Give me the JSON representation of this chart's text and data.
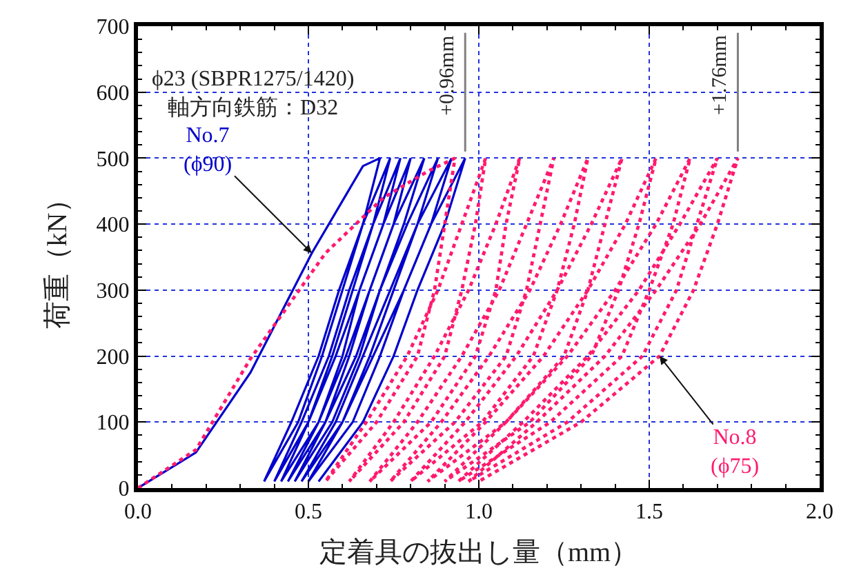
{
  "chart_data": {
    "type": "line",
    "xlabel": "定着具の抜出し量（mm）",
    "ylabel": "荷重（kN）",
    "xlim": [
      0,
      2
    ],
    "xticks": [
      {
        "value": 0,
        "label": "0.0"
      },
      {
        "value": 0.5,
        "label": "0.5"
      },
      {
        "value": 1,
        "label": "1.0"
      },
      {
        "value": 1.5,
        "label": "1.5"
      },
      {
        "value": 2,
        "label": "2.0"
      }
    ],
    "ylim": [
      0,
      700
    ],
    "yticks": [
      0,
      100,
      200,
      300,
      400,
      500,
      600,
      700
    ],
    "grid": true,
    "marker": "none",
    "series": [
      {
        "color": "#0000cc",
        "line_style": "solid",
        "x": [
          0,
          0.17,
          0.33,
          0.51,
          0.66,
          0.71,
          0.66,
          0.6,
          0.54,
          0.47,
          0.37,
          0.45,
          0.53,
          0.59,
          0.66,
          0.74,
          0.69,
          0.63,
          0.57,
          0.5,
          0.4,
          0.48,
          0.56,
          0.62,
          0.69,
          0.77,
          0.72,
          0.65,
          0.6,
          0.53,
          0.42,
          0.5,
          0.58,
          0.65,
          0.72,
          0.8,
          0.75,
          0.68,
          0.62,
          0.55,
          0.44,
          0.53,
          0.61,
          0.68,
          0.75,
          0.84,
          0.78,
          0.71,
          0.65,
          0.57,
          0.46,
          0.55,
          0.64,
          0.71,
          0.79,
          0.88,
          0.82,
          0.75,
          0.68,
          0.6,
          0.48,
          0.58,
          0.66,
          0.74,
          0.82,
          0.92,
          0.86,
          0.78,
          0.71,
          0.63,
          0.5,
          0.6,
          0.69,
          0.78,
          0.86,
          0.96,
          0.9,
          0.82,
          0.75,
          0.66,
          0.53
        ],
        "values": [
          0,
          54,
          175,
          356,
          488,
          500,
          400,
          300,
          200,
          100,
          10,
          100,
          200,
          300,
          400,
          500,
          400,
          300,
          200,
          100,
          10,
          100,
          200,
          300,
          400,
          500,
          400,
          300,
          200,
          100,
          10,
          100,
          200,
          300,
          400,
          500,
          400,
          300,
          200,
          100,
          10,
          100,
          200,
          300,
          400,
          500,
          400,
          300,
          200,
          100,
          10,
          100,
          200,
          300,
          400,
          500,
          400,
          300,
          200,
          100,
          10,
          100,
          200,
          300,
          400,
          500,
          400,
          300,
          200,
          100,
          10,
          100,
          200,
          300,
          400,
          500,
          400,
          300,
          200,
          100,
          10
        ]
      },
      {
        "color": "#ff1a6e",
        "line_style": "dotted",
        "x": [
          0,
          0.17,
          0.33,
          0.55,
          0.72,
          0.85,
          0.93,
          0.9,
          0.87,
          0.82,
          0.7,
          0.55,
          0.67,
          0.79,
          0.88,
          0.95,
          1.02,
          0.99,
          0.95,
          0.9,
          0.78,
          0.62,
          0.75,
          0.87,
          0.97,
          1.05,
          1.12,
          1.08,
          1.05,
          0.99,
          0.86,
          0.68,
          0.82,
          0.95,
          1.06,
          1.14,
          1.22,
          1.18,
          1.14,
          1.08,
          0.93,
          0.74,
          0.89,
          1.03,
          1.15,
          1.24,
          1.32,
          1.28,
          1.23,
          1.16,
          1.01,
          0.8,
          0.96,
          1.11,
          1.23,
          1.33,
          1.42,
          1.37,
          1.32,
          1.25,
          1.08,
          0.85,
          1.02,
          1.19,
          1.32,
          1.43,
          1.52,
          1.47,
          1.41,
          1.33,
          1.15,
          0.9,
          1.08,
          1.26,
          1.4,
          1.52,
          1.62,
          1.57,
          1.5,
          1.42,
          1.21,
          0.94,
          1.13,
          1.32,
          1.47,
          1.59,
          1.7,
          1.64,
          1.58,
          1.48,
          1.26,
          0.97,
          1.17,
          1.37,
          1.52,
          1.65,
          1.76,
          1.7,
          1.63,
          1.53,
          1.3,
          1.0
        ],
        "values": [
          0,
          58,
          196,
          356,
          440,
          480,
          500,
          400,
          300,
          200,
          100,
          10,
          100,
          200,
          300,
          400,
          500,
          400,
          300,
          200,
          100,
          10,
          100,
          200,
          300,
          400,
          500,
          400,
          300,
          200,
          100,
          10,
          100,
          200,
          300,
          400,
          500,
          400,
          300,
          200,
          100,
          10,
          100,
          200,
          300,
          400,
          500,
          400,
          300,
          200,
          100,
          10,
          100,
          200,
          300,
          400,
          500,
          400,
          300,
          200,
          100,
          10,
          100,
          200,
          300,
          400,
          500,
          400,
          300,
          200,
          100,
          10,
          100,
          200,
          300,
          400,
          500,
          400,
          300,
          200,
          100,
          10,
          100,
          200,
          300,
          400,
          500,
          400,
          300,
          200,
          100,
          10,
          100,
          200,
          300,
          400,
          500,
          400,
          300,
          200,
          100,
          10
        ]
      }
    ],
    "ref_lines": [
      {
        "axis": "x",
        "value": 0.96,
        "label": "+0.96mm",
        "color": "#808080"
      },
      {
        "axis": "x",
        "value": 1.76,
        "label": "+1.76mm",
        "color": "#808080"
      }
    ],
    "annotations": [
      "ϕ23 (SBPR1275/1420)\n軸方向鉄筋：D32",
      {
        "text": "No.7\n(ϕ90)",
        "x": 0.51,
        "y": 356
      },
      {
        "text": "No.8\n(ϕ75)",
        "x": 1.53,
        "y": 200
      }
    ]
  }
}
